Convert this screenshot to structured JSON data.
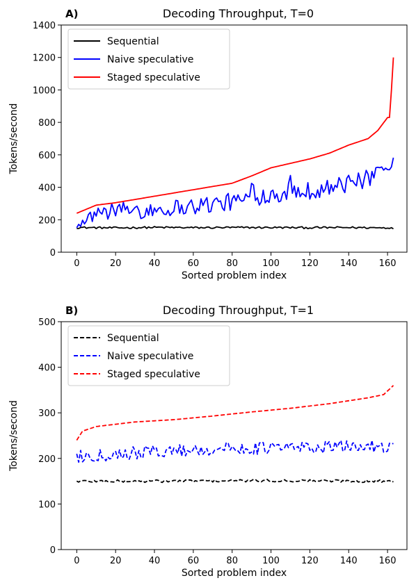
{
  "chart_data": [
    {
      "type": "line",
      "panel_label": "A)",
      "title": "Decoding Throughput, T=0",
      "xlabel": "Sorted problem index",
      "ylabel": "Tokens/second",
      "xlim": [
        -8,
        170
      ],
      "ylim": [
        0,
        1400
      ],
      "xticks": [
        0,
        20,
        40,
        60,
        80,
        100,
        120,
        140,
        160
      ],
      "yticks": [
        0,
        200,
        400,
        600,
        800,
        1000,
        1200,
        1400
      ],
      "grid": false,
      "legend": "top-left",
      "line_style": "solid",
      "n_points": 164,
      "series": [
        {
          "name": "Sequential",
          "color": "#000000",
          "anchors": [
            [
              0,
              152
            ],
            [
              20,
              150
            ],
            [
              40,
              153
            ],
            [
              60,
              151
            ],
            [
              80,
              152
            ],
            [
              100,
              152
            ],
            [
              120,
              151
            ],
            [
              140,
              152
            ],
            [
              163,
              150
            ]
          ],
          "noise": 6
        },
        {
          "name": "Naive speculative",
          "color": "#0000ff",
          "anchors": [
            [
              0,
              195
            ],
            [
              10,
              240
            ],
            [
              20,
              255
            ],
            [
              40,
              265
            ],
            [
              60,
              285
            ],
            [
              80,
              310
            ],
            [
              100,
              360
            ],
            [
              120,
              380
            ],
            [
              140,
              420
            ],
            [
              155,
              470
            ],
            [
              163,
              575
            ]
          ],
          "noise": 55
        },
        {
          "name": "Staged speculative",
          "color": "#ff0000",
          "anchors": [
            [
              0,
              240
            ],
            [
              10,
              290
            ],
            [
              20,
              305
            ],
            [
              40,
              345
            ],
            [
              60,
              385
            ],
            [
              80,
              425
            ],
            [
              90,
              470
            ],
            [
              100,
              520
            ],
            [
              120,
              575
            ],
            [
              130,
              610
            ],
            [
              140,
              660
            ],
            [
              150,
              700
            ],
            [
              155,
              750
            ],
            [
              160,
              830
            ],
            [
              161,
              830
            ],
            [
              162,
              1000
            ],
            [
              163,
              1200
            ]
          ],
          "noise": 0
        }
      ]
    },
    {
      "type": "line",
      "panel_label": "B)",
      "title": "Decoding Throughput, T=1",
      "xlabel": "Sorted problem index",
      "ylabel": "Tokens/second",
      "xlim": [
        -8,
        170
      ],
      "ylim": [
        0,
        500
      ],
      "xticks": [
        0,
        20,
        40,
        60,
        80,
        100,
        120,
        140,
        160
      ],
      "yticks": [
        0,
        100,
        200,
        300,
        400,
        500
      ],
      "grid": false,
      "legend": "top-left",
      "line_style": "dashed",
      "n_points": 164,
      "series": [
        {
          "name": "Sequential",
          "color": "#000000",
          "anchors": [
            [
              0,
              150
            ],
            [
              40,
              150
            ],
            [
              80,
              151
            ],
            [
              120,
              151
            ],
            [
              163,
              150
            ]
          ],
          "noise": 3
        },
        {
          "name": "Naive speculative",
          "color": "#0000ff",
          "anchors": [
            [
              0,
              205
            ],
            [
              40,
              215
            ],
            [
              80,
              222
            ],
            [
              120,
              224
            ],
            [
              163,
              228
            ]
          ],
          "noise": 14
        },
        {
          "name": "Staged speculative",
          "color": "#ff0000",
          "anchors": [
            [
              0,
              240
            ],
            [
              3,
              260
            ],
            [
              10,
              270
            ],
            [
              20,
              275
            ],
            [
              30,
              280
            ],
            [
              50,
              285
            ],
            [
              70,
              293
            ],
            [
              90,
              302
            ],
            [
              110,
              310
            ],
            [
              130,
              320
            ],
            [
              150,
              333
            ],
            [
              158,
              340
            ],
            [
              163,
              360
            ]
          ],
          "noise": 0
        }
      ]
    }
  ]
}
